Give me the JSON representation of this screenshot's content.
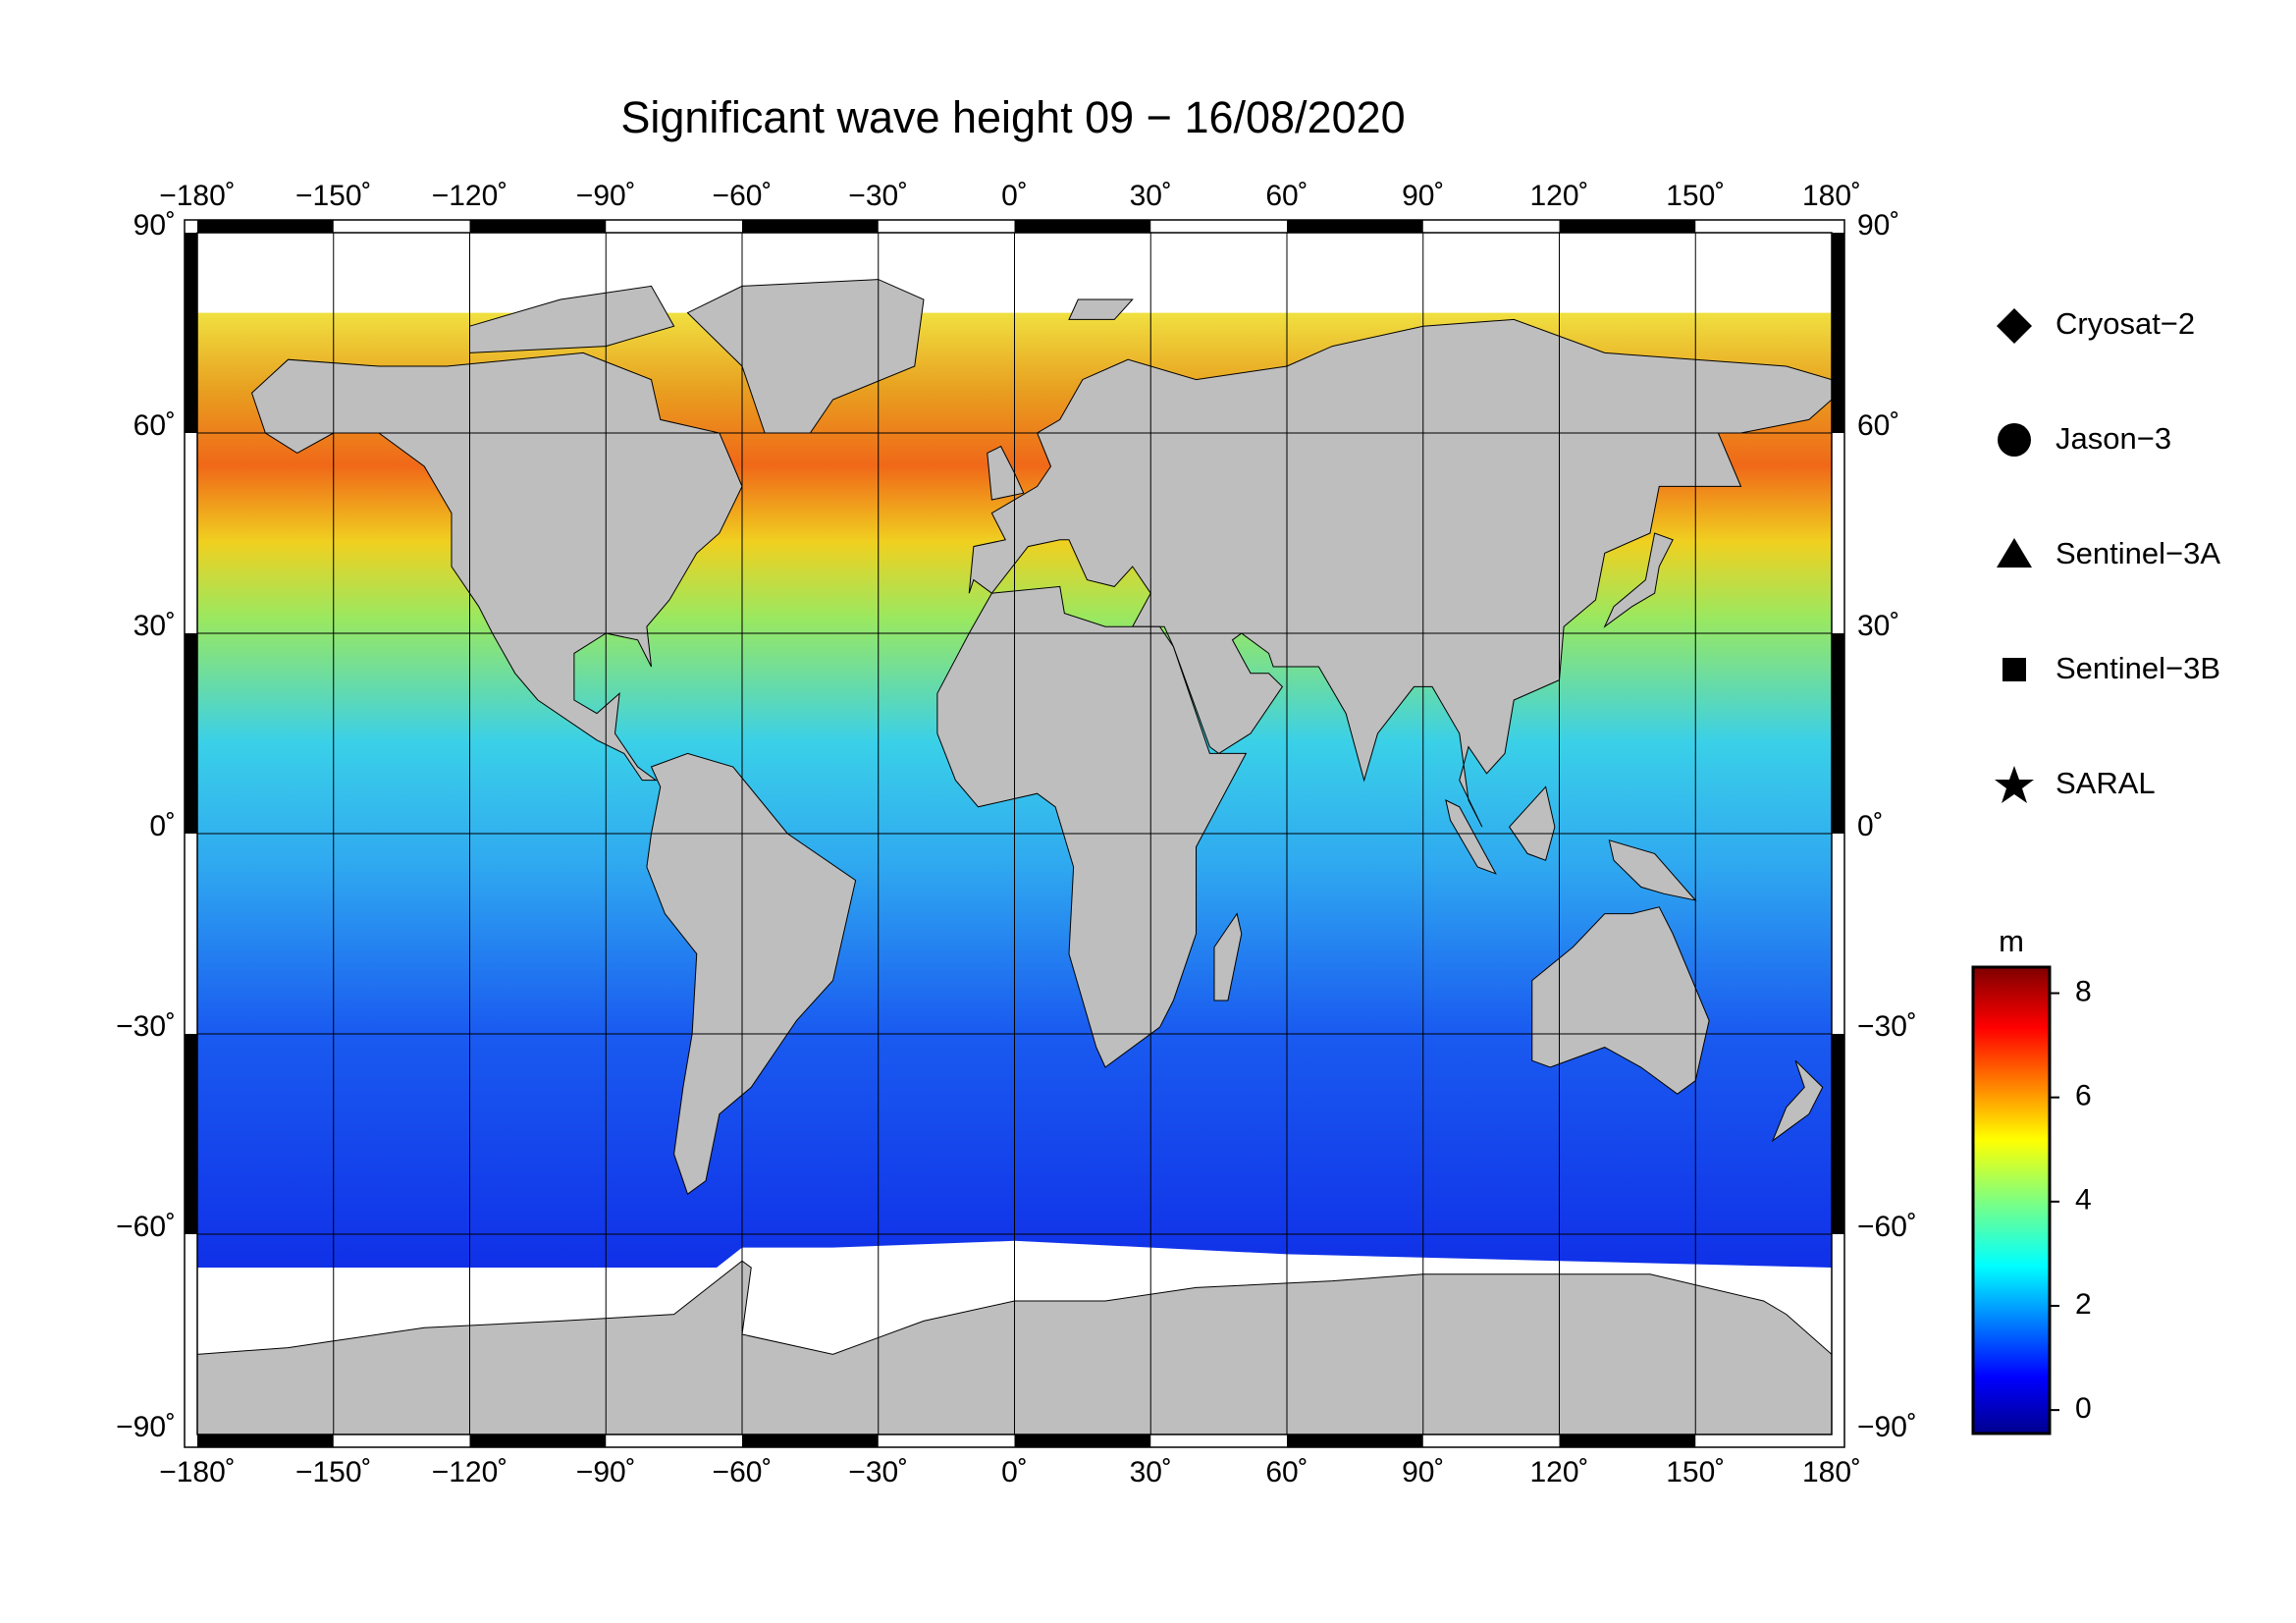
{
  "map": {
    "title": "Significant wave height 09 − 16/08/2020",
    "xlim": [
      -180,
      180
    ],
    "ylim": [
      -90,
      90
    ],
    "xticks": [
      {
        "value": -180,
        "label": "−180˚"
      },
      {
        "value": -150,
        "label": "−150˚"
      },
      {
        "value": -120,
        "label": "−120˚"
      },
      {
        "value": -90,
        "label": "−90˚"
      },
      {
        "value": -60,
        "label": "−60˚"
      },
      {
        "value": -30,
        "label": "−30˚"
      },
      {
        "value": 0,
        "label": "0˚"
      },
      {
        "value": 30,
        "label": "30˚"
      },
      {
        "value": 60,
        "label": "60˚"
      },
      {
        "value": 90,
        "label": "90˚"
      },
      {
        "value": 120,
        "label": "120˚"
      },
      {
        "value": 150,
        "label": "150˚"
      },
      {
        "value": 180,
        "label": "180˚"
      }
    ],
    "yticks": [
      {
        "value": 90,
        "label": "90˚"
      },
      {
        "value": 60,
        "label": "60˚"
      },
      {
        "value": 30,
        "label": "30˚"
      },
      {
        "value": 0,
        "label": "0˚"
      },
      {
        "value": -30,
        "label": "−30˚"
      },
      {
        "value": -60,
        "label": "−60˚"
      },
      {
        "value": -90,
        "label": "−90˚"
      }
    ],
    "grid": true,
    "legend": [
      "Cryosat−2",
      "Jason−3",
      "Sentinel−3A",
      "Sentinel−3B",
      "SARAL"
    ],
    "colorbar": {
      "label": "m",
      "lim": [
        -0.45,
        8.5
      ],
      "ticks": [
        0,
        2,
        4,
        6,
        8
      ]
    }
  }
}
